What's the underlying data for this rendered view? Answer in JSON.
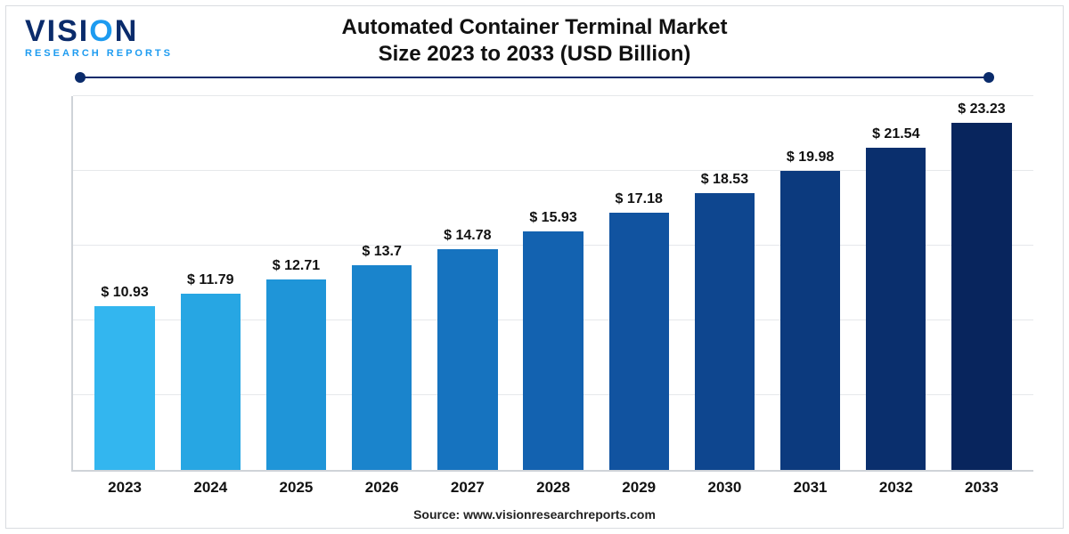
{
  "logo": {
    "word1_pre": "VISI",
    "word1_accent": "O",
    "word1_post": "N",
    "sub": "RESEARCH REPORTS",
    "text_color": "#0a2b6b",
    "accent_color": "#1d9bf0"
  },
  "title": {
    "line1": "Automated Container Terminal Market",
    "line2": "Size 2023 to 2033 (USD Billion)",
    "fontsize": 24,
    "color": "#111111"
  },
  "divider": {
    "color": "#0a2b6b"
  },
  "chart": {
    "type": "bar",
    "categories": [
      "2023",
      "2024",
      "2025",
      "2026",
      "2027",
      "2028",
      "2029",
      "2030",
      "2031",
      "2032",
      "2033"
    ],
    "values": [
      10.93,
      11.79,
      12.71,
      13.7,
      14.78,
      15.93,
      17.18,
      18.53,
      19.98,
      21.54,
      23.23
    ],
    "value_labels": [
      "$ 10.93",
      "$ 11.79",
      "$ 12.71",
      "$ 13.7",
      "$ 14.78",
      "$ 15.93",
      "$ 17.18",
      "$ 18.53",
      "$ 19.98",
      "$ 21.54",
      "$ 23.23"
    ],
    "bar_colors": [
      "#33b6ef",
      "#27a6e3",
      "#1f95d8",
      "#1a84cc",
      "#1673bf",
      "#1362b0",
      "#1153a0",
      "#0e468f",
      "#0c3a7e",
      "#0a2f6d",
      "#08255d"
    ],
    "ylim": [
      0,
      25
    ],
    "grid_positions": [
      5,
      10,
      15,
      20,
      25
    ],
    "grid_color": "#e6e8eb",
    "axis_color": "#cfd3d8",
    "bar_width_pct": 70,
    "value_label_fontsize": 16,
    "xlabel_fontsize": 17,
    "background_color": "#ffffff"
  },
  "source": {
    "text": "Source: www.visionresearchreports.com",
    "fontsize": 14
  }
}
